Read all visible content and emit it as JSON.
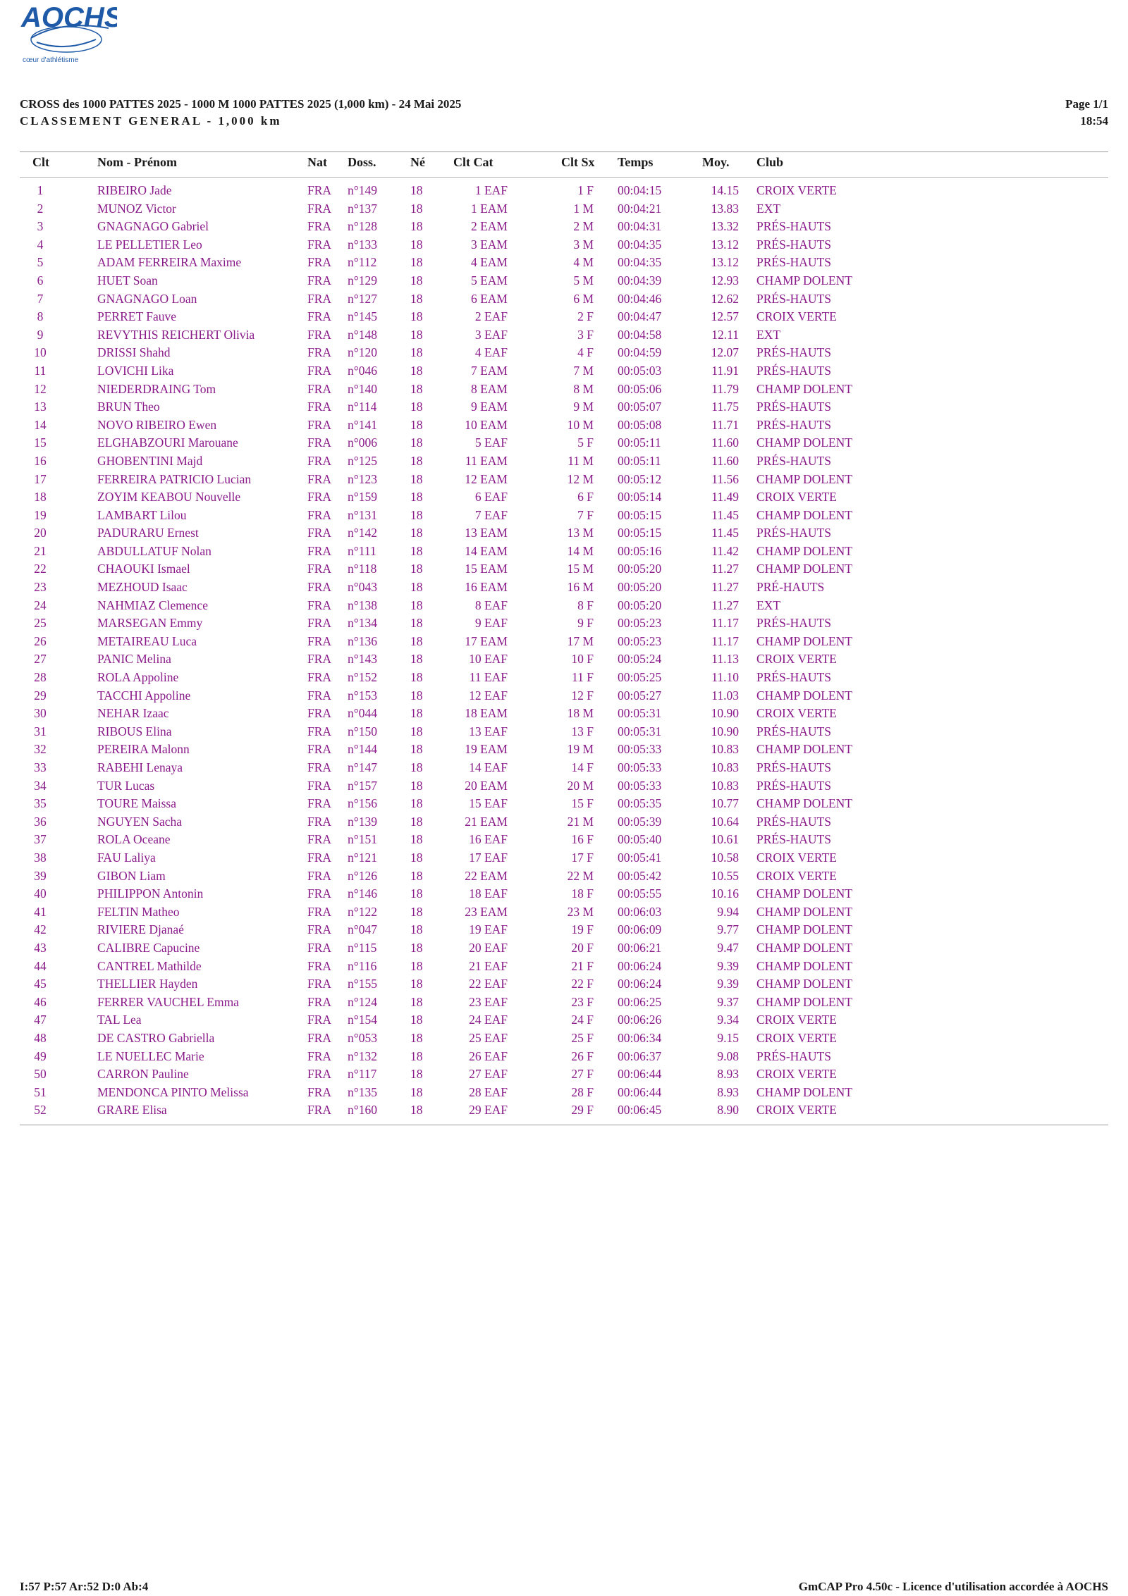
{
  "logo": {
    "text": "AOCHS",
    "tagline": "cœur d'athlétisme"
  },
  "header": {
    "title": "CROSS des 1000 PATTES 2025 - 1000 M 1000 PATTES 2025 (1,000 km) - 24 Mai 2025",
    "subtitle": "CLASSEMENT GENERAL - 1,000 km",
    "page": "Page 1/1",
    "time": "18:54"
  },
  "table": {
    "columns": [
      "Clt",
      "Nom - Prénom",
      "Nat",
      "Doss.",
      "Né",
      "Clt Cat",
      "Clt Sx",
      "Temps",
      "Moy.",
      "Club"
    ],
    "rows": [
      [
        "1",
        "RIBEIRO Jade",
        "FRA",
        "n°149",
        "18",
        "1 EAF",
        "1 F",
        "00:04:15",
        "14.15",
        "CROIX VERTE"
      ],
      [
        "2",
        "MUNOZ Victor",
        "FRA",
        "n°137",
        "18",
        "1 EAM",
        "1 M",
        "00:04:21",
        "13.83",
        "EXT"
      ],
      [
        "3",
        "GNAGNAGO Gabriel",
        "FRA",
        "n°128",
        "18",
        "2 EAM",
        "2 M",
        "00:04:31",
        "13.32",
        "PRÉS-HAUTS"
      ],
      [
        "4",
        "LE PELLETIER Leo",
        "FRA",
        "n°133",
        "18",
        "3 EAM",
        "3 M",
        "00:04:35",
        "13.12",
        "PRÉS-HAUTS"
      ],
      [
        "5",
        "ADAM FERREIRA Maxime",
        "FRA",
        "n°112",
        "18",
        "4 EAM",
        "4 M",
        "00:04:35",
        "13.12",
        "PRÉS-HAUTS"
      ],
      [
        "6",
        "HUET Soan",
        "FRA",
        "n°129",
        "18",
        "5 EAM",
        "5 M",
        "00:04:39",
        "12.93",
        "CHAMP DOLENT"
      ],
      [
        "7",
        "GNAGNAGO Loan",
        "FRA",
        "n°127",
        "18",
        "6 EAM",
        "6 M",
        "00:04:46",
        "12.62",
        "PRÉS-HAUTS"
      ],
      [
        "8",
        "PERRET Fauve",
        "FRA",
        "n°145",
        "18",
        "2 EAF",
        "2 F",
        "00:04:47",
        "12.57",
        "CROIX VERTE"
      ],
      [
        "9",
        "REVYTHIS REICHERT Olivia",
        "FRA",
        "n°148",
        "18",
        "3 EAF",
        "3 F",
        "00:04:58",
        "12.11",
        "EXT"
      ],
      [
        "10",
        "DRISSI Shahd",
        "FRA",
        "n°120",
        "18",
        "4 EAF",
        "4 F",
        "00:04:59",
        "12.07",
        "PRÉS-HAUTS"
      ],
      [
        "11",
        "LOVICHI Lika",
        "FRA",
        "n°046",
        "18",
        "7 EAM",
        "7 M",
        "00:05:03",
        "11.91",
        "PRÉS-HAUTS"
      ],
      [
        "12",
        "NIEDERDRAING Tom",
        "FRA",
        "n°140",
        "18",
        "8 EAM",
        "8 M",
        "00:05:06",
        "11.79",
        "CHAMP DOLENT"
      ],
      [
        "13",
        "BRUN Theo",
        "FRA",
        "n°114",
        "18",
        "9 EAM",
        "9 M",
        "00:05:07",
        "11.75",
        "PRÉS-HAUTS"
      ],
      [
        "14",
        "NOVO RIBEIRO Ewen",
        "FRA",
        "n°141",
        "18",
        "10 EAM",
        "10 M",
        "00:05:08",
        "11.71",
        "PRÉS-HAUTS"
      ],
      [
        "15",
        "ELGHABZOURI Marouane",
        "FRA",
        "n°006",
        "18",
        "5 EAF",
        "5 F",
        "00:05:11",
        "11.60",
        "CHAMP DOLENT"
      ],
      [
        "16",
        "GHOBENTINI Majd",
        "FRA",
        "n°125",
        "18",
        "11 EAM",
        "11 M",
        "00:05:11",
        "11.60",
        "PRÉS-HAUTS"
      ],
      [
        "17",
        "FERREIRA PATRICIO Lucian",
        "FRA",
        "n°123",
        "18",
        "12 EAM",
        "12 M",
        "00:05:12",
        "11.56",
        "CHAMP DOLENT"
      ],
      [
        "18",
        "ZOYIM KEABOU Nouvelle",
        "FRA",
        "n°159",
        "18",
        "6 EAF",
        "6 F",
        "00:05:14",
        "11.49",
        "CROIX VERTE"
      ],
      [
        "19",
        "LAMBART Lilou",
        "FRA",
        "n°131",
        "18",
        "7 EAF",
        "7 F",
        "00:05:15",
        "11.45",
        "CHAMP DOLENT"
      ],
      [
        "20",
        "PADURARU Ernest",
        "FRA",
        "n°142",
        "18",
        "13 EAM",
        "13 M",
        "00:05:15",
        "11.45",
        "PRÉS-HAUTS"
      ],
      [
        "21",
        "ABDULLATUF Nolan",
        "FRA",
        "n°111",
        "18",
        "14 EAM",
        "14 M",
        "00:05:16",
        "11.42",
        "CHAMP DOLENT"
      ],
      [
        "22",
        "CHAOUKI Ismael",
        "FRA",
        "n°118",
        "18",
        "15 EAM",
        "15 M",
        "00:05:20",
        "11.27",
        "CHAMP DOLENT"
      ],
      [
        "23",
        "MEZHOUD Isaac",
        "FRA",
        "n°043",
        "18",
        "16 EAM",
        "16 M",
        "00:05:20",
        "11.27",
        "PRÉ-HAUTS"
      ],
      [
        "24",
        "NAHMIAZ Clemence",
        "FRA",
        "n°138",
        "18",
        "8 EAF",
        "8 F",
        "00:05:20",
        "11.27",
        "EXT"
      ],
      [
        "25",
        "MARSEGAN Emmy",
        "FRA",
        "n°134",
        "18",
        "9 EAF",
        "9 F",
        "00:05:23",
        "11.17",
        "PRÉS-HAUTS"
      ],
      [
        "26",
        "METAIREAU Luca",
        "FRA",
        "n°136",
        "18",
        "17 EAM",
        "17 M",
        "00:05:23",
        "11.17",
        "CHAMP DOLENT"
      ],
      [
        "27",
        "PANIC Melina",
        "FRA",
        "n°143",
        "18",
        "10 EAF",
        "10 F",
        "00:05:24",
        "11.13",
        "CROIX VERTE"
      ],
      [
        "28",
        "ROLA Appoline",
        "FRA",
        "n°152",
        "18",
        "11 EAF",
        "11 F",
        "00:05:25",
        "11.10",
        "PRÉS-HAUTS"
      ],
      [
        "29",
        "TACCHI Appoline",
        "FRA",
        "n°153",
        "18",
        "12 EAF",
        "12 F",
        "00:05:27",
        "11.03",
        "CHAMP DOLENT"
      ],
      [
        "30",
        "NEHAR Izaac",
        "FRA",
        "n°044",
        "18",
        "18 EAM",
        "18 M",
        "00:05:31",
        "10.90",
        "CROIX VERTE"
      ],
      [
        "31",
        "RIBOUS Elina",
        "FRA",
        "n°150",
        "18",
        "13 EAF",
        "13 F",
        "00:05:31",
        "10.90",
        "PRÉS-HAUTS"
      ],
      [
        "32",
        "PEREIRA Malonn",
        "FRA",
        "n°144",
        "18",
        "19 EAM",
        "19 M",
        "00:05:33",
        "10.83",
        "CHAMP DOLENT"
      ],
      [
        "33",
        "RABEHI Lenaya",
        "FRA",
        "n°147",
        "18",
        "14 EAF",
        "14 F",
        "00:05:33",
        "10.83",
        "PRÉS-HAUTS"
      ],
      [
        "34",
        "TUR Lucas",
        "FRA",
        "n°157",
        "18",
        "20 EAM",
        "20 M",
        "00:05:33",
        "10.83",
        "PRÉS-HAUTS"
      ],
      [
        "35",
        "TOURE Maissa",
        "FRA",
        "n°156",
        "18",
        "15 EAF",
        "15 F",
        "00:05:35",
        "10.77",
        "CHAMP DOLENT"
      ],
      [
        "36",
        "NGUYEN Sacha",
        "FRA",
        "n°139",
        "18",
        "21 EAM",
        "21 M",
        "00:05:39",
        "10.64",
        "PRÉS-HAUTS"
      ],
      [
        "37",
        "ROLA Oceane",
        "FRA",
        "n°151",
        "18",
        "16 EAF",
        "16 F",
        "00:05:40",
        "10.61",
        "PRÉS-HAUTS"
      ],
      [
        "38",
        "FAU Laliya",
        "FRA",
        "n°121",
        "18",
        "17 EAF",
        "17 F",
        "00:05:41",
        "10.58",
        "CROIX VERTE"
      ],
      [
        "39",
        "GIBON Liam",
        "FRA",
        "n°126",
        "18",
        "22 EAM",
        "22 M",
        "00:05:42",
        "10.55",
        "CROIX VERTE"
      ],
      [
        "40",
        "PHILIPPON Antonin",
        "FRA",
        "n°146",
        "18",
        "18 EAF",
        "18 F",
        "00:05:55",
        "10.16",
        "CHAMP DOLENT"
      ],
      [
        "41",
        "FELTIN Matheo",
        "FRA",
        "n°122",
        "18",
        "23 EAM",
        "23 M",
        "00:06:03",
        "9.94",
        "CHAMP DOLENT"
      ],
      [
        "42",
        "RIVIERE Djanaé",
        "FRA",
        "n°047",
        "18",
        "19 EAF",
        "19 F",
        "00:06:09",
        "9.77",
        "CHAMP DOLENT"
      ],
      [
        "43",
        "CALIBRE Capucine",
        "FRA",
        "n°115",
        "18",
        "20 EAF",
        "20 F",
        "00:06:21",
        "9.47",
        "CHAMP DOLENT"
      ],
      [
        "44",
        "CANTREL Mathilde",
        "FRA",
        "n°116",
        "18",
        "21 EAF",
        "21 F",
        "00:06:24",
        "9.39",
        "CHAMP DOLENT"
      ],
      [
        "45",
        "THELLIER Hayden",
        "FRA",
        "n°155",
        "18",
        "22 EAF",
        "22 F",
        "00:06:24",
        "9.39",
        "CHAMP DOLENT"
      ],
      [
        "46",
        "FERRER VAUCHEL Emma",
        "FRA",
        "n°124",
        "18",
        "23 EAF",
        "23 F",
        "00:06:25",
        "9.37",
        "CHAMP DOLENT"
      ],
      [
        "47",
        "TAL Lea",
        "FRA",
        "n°154",
        "18",
        "24 EAF",
        "24 F",
        "00:06:26",
        "9.34",
        "CROIX VERTE"
      ],
      [
        "48",
        "DE CASTRO Gabriella",
        "FRA",
        "n°053",
        "18",
        "25 EAF",
        "25 F",
        "00:06:34",
        "9.15",
        "CROIX VERTE"
      ],
      [
        "49",
        "LE NUELLEC Marie",
        "FRA",
        "n°132",
        "18",
        "26 EAF",
        "26 F",
        "00:06:37",
        "9.08",
        "PRÉS-HAUTS"
      ],
      [
        "50",
        "CARRON Pauline",
        "FRA",
        "n°117",
        "18",
        "27 EAF",
        "27 F",
        "00:06:44",
        "8.93",
        "CROIX VERTE"
      ],
      [
        "51",
        "MENDONCA PINTO Melissa",
        "FRA",
        "n°135",
        "18",
        "28 EAF",
        "28 F",
        "00:06:44",
        "8.93",
        "CHAMP DOLENT"
      ],
      [
        "52",
        "GRARE Elisa",
        "FRA",
        "n°160",
        "18",
        "29 EAF",
        "29 F",
        "00:06:45",
        "8.90",
        "CROIX VERTE"
      ]
    ]
  },
  "footer": {
    "stats": "I:57 P:57 Ar:52 D:0 Ab:4",
    "license": "GmCAP Pro 4.50c - Licence d'utilisation accordée à AOCHS"
  },
  "colors": {
    "row_text": "#8a1a8a",
    "header_text": "#1a1a1a",
    "logo": "#1f5aa8",
    "rule": "#9a9a9a"
  }
}
